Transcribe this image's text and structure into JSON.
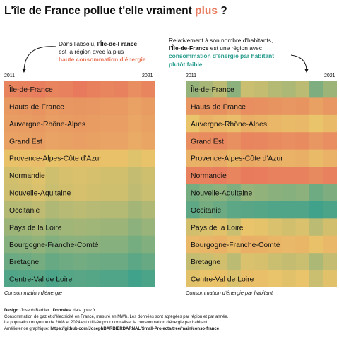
{
  "title": {
    "before": "L'île de France pollue t'elle vraiment",
    "highlight": "plus",
    "after": "?"
  },
  "callout_left": {
    "line1_pre": "Dans l'absolu,",
    "line1_bold": "l'Île-de-France",
    "line2": "est la région avec la plus",
    "line3": "haute consommation d'énergie"
  },
  "callout_right": {
    "line1": "Relativement à son nombre d'habitants,",
    "line2_bold": "l'Île-de-France",
    "line2_rest": "est une région avec",
    "line3": "consommation d'énergie par habitant",
    "line4": "plutôt faible"
  },
  "colors": {
    "high": "#e8795c",
    "mid": "#e9c46a",
    "low": "#2a9d8f",
    "accent_orange": "#e8795c",
    "accent_teal": "#2a9d8f"
  },
  "chart_data": [
    {
      "type": "heatmap",
      "caption": "Consommation d'énergie",
      "x_start_label": "2011",
      "x_end_label": "2021",
      "years": [
        2011,
        2012,
        2013,
        2014,
        2015,
        2016,
        2017,
        2018,
        2019,
        2020,
        2021
      ],
      "rows": [
        {
          "region": "Île-de-France",
          "values": [
            0.93,
            0.94,
            0.97,
            0.92,
            0.95,
            1.0,
            0.96,
            0.93,
            0.95,
            0.86,
            0.92
          ]
        },
        {
          "region": "Hauts-de-France",
          "values": [
            0.79,
            0.8,
            0.82,
            0.78,
            0.8,
            0.81,
            0.8,
            0.78,
            0.78,
            0.73,
            0.77
          ]
        },
        {
          "region": "Auvergne-Rhône-Alpes",
          "values": [
            0.76,
            0.77,
            0.79,
            0.75,
            0.77,
            0.78,
            0.77,
            0.75,
            0.75,
            0.7,
            0.74
          ]
        },
        {
          "region": "Grand Est",
          "values": [
            0.73,
            0.74,
            0.76,
            0.72,
            0.74,
            0.75,
            0.74,
            0.72,
            0.72,
            0.67,
            0.71
          ]
        },
        {
          "region": "Provence-Alpes-Côte d'Azur",
          "values": [
            0.52,
            0.53,
            0.55,
            0.51,
            0.53,
            0.54,
            0.53,
            0.52,
            0.52,
            0.47,
            0.51
          ]
        },
        {
          "region": "Normandie",
          "values": [
            0.44,
            0.45,
            0.47,
            0.43,
            0.45,
            0.46,
            0.45,
            0.44,
            0.44,
            0.4,
            0.43
          ]
        },
        {
          "region": "Nouvelle-Aquitaine",
          "values": [
            0.43,
            0.44,
            0.46,
            0.42,
            0.44,
            0.45,
            0.44,
            0.43,
            0.43,
            0.39,
            0.42
          ]
        },
        {
          "region": "Occitanie",
          "values": [
            0.36,
            0.37,
            0.39,
            0.35,
            0.37,
            0.38,
            0.37,
            0.36,
            0.36,
            0.32,
            0.35
          ]
        },
        {
          "region": "Pays de la Loire",
          "values": [
            0.3,
            0.31,
            0.33,
            0.29,
            0.31,
            0.32,
            0.31,
            0.3,
            0.3,
            0.26,
            0.29
          ]
        },
        {
          "region": "Bourgogne-Franche-Comté",
          "values": [
            0.24,
            0.25,
            0.27,
            0.23,
            0.25,
            0.26,
            0.25,
            0.24,
            0.24,
            0.2,
            0.23
          ]
        },
        {
          "region": "Bretagne",
          "values": [
            0.17,
            0.18,
            0.2,
            0.16,
            0.18,
            0.19,
            0.18,
            0.17,
            0.17,
            0.13,
            0.16
          ]
        },
        {
          "region": "Centre-Val de Loire",
          "values": [
            0.1,
            0.11,
            0.12,
            0.09,
            0.11,
            0.12,
            0.11,
            0.1,
            0.1,
            0.06,
            0.09
          ]
        }
      ]
    },
    {
      "type": "heatmap",
      "caption": "Consommation d'énergie par habitant",
      "x_start_label": "2011",
      "x_end_label": "2021",
      "years": [
        2011,
        2012,
        2013,
        2014,
        2015,
        2016,
        2017,
        2018,
        2019,
        2020,
        2021
      ],
      "rows": [
        {
          "region": "Île-de-France",
          "values": [
            0.28,
            0.33,
            0.38,
            0.26,
            0.42,
            0.4,
            0.36,
            0.34,
            0.38,
            0.22,
            0.3
          ]
        },
        {
          "region": "Hauts-de-France",
          "values": [
            0.8,
            0.82,
            0.84,
            0.78,
            0.86,
            0.85,
            0.82,
            0.8,
            0.82,
            0.74,
            0.8
          ]
        },
        {
          "region": "Auvergne-Rhône-Alpes",
          "values": [
            0.5,
            0.62,
            0.58,
            0.55,
            0.64,
            0.62,
            0.59,
            0.57,
            0.58,
            0.5,
            0.56
          ]
        },
        {
          "region": "Grand Est",
          "values": [
            0.86,
            0.88,
            0.9,
            0.85,
            0.92,
            0.91,
            0.88,
            0.86,
            0.88,
            0.8,
            0.86
          ]
        },
        {
          "region": "Provence-Alpes-Côte d'Azur",
          "values": [
            0.62,
            0.64,
            0.66,
            0.6,
            0.68,
            0.67,
            0.64,
            0.62,
            0.64,
            0.56,
            0.62
          ]
        },
        {
          "region": "Normandie",
          "values": [
            0.94,
            0.95,
            0.97,
            0.93,
            0.99,
            0.98,
            0.95,
            0.94,
            0.95,
            0.89,
            0.94
          ]
        },
        {
          "region": "Nouvelle-Aquitaine",
          "values": [
            0.2,
            0.24,
            0.26,
            0.22,
            0.28,
            0.27,
            0.25,
            0.24,
            0.26,
            0.18,
            0.22
          ]
        },
        {
          "region": "Occitanie",
          "values": [
            0.14,
            0.2,
            0.17,
            0.13,
            0.12,
            0.11,
            0.1,
            0.1,
            0.1,
            0.06,
            0.09
          ]
        },
        {
          "region": "Pays de la Loire",
          "values": [
            0.44,
            0.46,
            0.48,
            0.42,
            0.5,
            0.49,
            0.46,
            0.44,
            0.46,
            0.38,
            0.44
          ]
        },
        {
          "region": "Bourgogne-Franche-Comté",
          "values": [
            0.58,
            0.6,
            0.62,
            0.56,
            0.64,
            0.63,
            0.6,
            0.58,
            0.6,
            0.52,
            0.58
          ]
        },
        {
          "region": "Bretagne",
          "values": [
            0.4,
            0.42,
            0.44,
            0.38,
            0.46,
            0.45,
            0.42,
            0.4,
            0.42,
            0.34,
            0.4
          ]
        },
        {
          "region": "Centre-Val de Loire",
          "values": [
            0.48,
            0.5,
            0.52,
            0.46,
            0.54,
            0.53,
            0.5,
            0.48,
            0.5,
            0.42,
            0.48
          ]
        }
      ]
    }
  ],
  "footer": {
    "design_label": "Design",
    "design_value": ": Joseph Barbier",
    "data_label": "Données",
    "data_value": ": data.gouv.fr",
    "line2": "Consommation de gaz et d'électricité en France, mesuré en MWh. Les données sont agrégées par région et par année.",
    "line3": "La population moyenne de 2008 et 2024 est utilisée pour normaliser la consommation d'énergie par habitant.",
    "line4_pre": "Améliorer ce graphique:",
    "line4_link": "https://github.com/JosephBARBIERDARNAL/Small-Projects/tree/main/conso-france"
  }
}
